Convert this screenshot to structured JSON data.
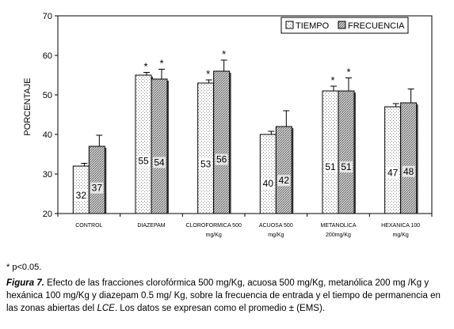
{
  "chart_data": {
    "type": "bar",
    "ylabel": "PORCENTAJE",
    "ylim": [
      20,
      70
    ],
    "yticks": [
      20,
      30,
      40,
      50,
      60,
      70
    ],
    "categories": [
      {
        "lines": [
          "CONTROL"
        ]
      },
      {
        "lines": [
          "DIAZEPAM"
        ]
      },
      {
        "lines": [
          "CLOROFORMICA 500",
          "mg/Kg"
        ]
      },
      {
        "lines": [
          "ACUOSA   500",
          "mg/Kg"
        ]
      },
      {
        "lines": [
          "METANOLICA",
          "200mg/Kg"
        ]
      },
      {
        "lines": [
          "HEXANICA   100",
          "mg/Kg"
        ]
      }
    ],
    "series": [
      {
        "name": "TIEMPO",
        "values": [
          32,
          55,
          53,
          40,
          51,
          47
        ],
        "errors": [
          0.7,
          0.7,
          0.8,
          0.8,
          1.2,
          0.8
        ],
        "pattern": "dots"
      },
      {
        "name": "FRECUENCIA",
        "values": [
          37,
          54,
          56,
          42,
          51,
          48
        ],
        "errors": [
          2.8,
          2.5,
          2.8,
          4.0,
          3.3,
          3.5
        ],
        "pattern": "crosshatch"
      }
    ],
    "data_labels": [
      [
        "32",
        "55",
        "53",
        "40",
        "51",
        "47"
      ],
      [
        "37",
        "54",
        "56",
        "42",
        "51",
        "48"
      ]
    ],
    "significance": [
      [
        false,
        true,
        true,
        false,
        true,
        false
      ],
      [
        false,
        true,
        true,
        false,
        true,
        false
      ]
    ],
    "significance_marker": "*",
    "legend_position": "top-right",
    "grid": false
  },
  "note": "* p<0.05.",
  "caption": {
    "label": "Figura 7.",
    "text1": " Efecto de las fracciones clorofórmica 500 mg/Kg, acuosa 500 mg/Kg, metanólica 200 mg /Kg y hexánica 100 mg/Kg y diazepam 0.5 mg/ Kg, sobre la frecuencia de entrada y el tiempo de permanencia en las zonas abiertas del ",
    "ital": "LCE",
    "text2": ". Los datos se expresan como el promedio ± (EMS)."
  }
}
